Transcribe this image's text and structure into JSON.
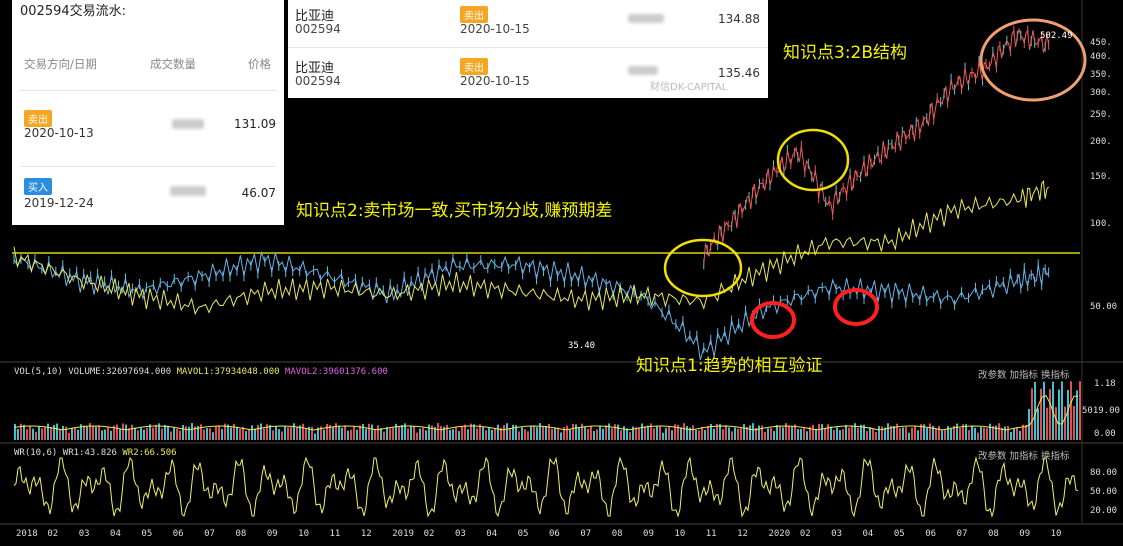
{
  "trade_log": {
    "title": "002594交易流水:",
    "headers": {
      "direction_date": "交易方向/日期",
      "quantity": "成交数量",
      "price": "价格"
    },
    "rows": [
      {
        "badge": "卖出",
        "badge_color": "#f5a623",
        "date": "2020-10-13",
        "price": "131.09"
      },
      {
        "badge": "买入",
        "badge_color": "#2a8dde",
        "date": "2019-12-24",
        "price": "46.07"
      }
    ]
  },
  "trade_log_top": {
    "rows": [
      {
        "name": "比亚迪",
        "code": "002594",
        "badge": "卖出",
        "date": "2020-10-15",
        "price": "134.88"
      },
      {
        "name": "比亚迪",
        "code": "002594",
        "badge": "卖出",
        "date": "2020-10-15",
        "price": "135.46"
      }
    ],
    "watermark": "财信DK-CAPITAL"
  },
  "annotations": {
    "note1": "知识点1:趋势的相互验证",
    "note2": "知识点2:卖市场一致,买市场分歧,赚预期差",
    "note3": "知识点3:2B结构"
  },
  "markers": {
    "low": "35.40",
    "high": "502.49"
  },
  "chart_data": [
    {
      "type": "line",
      "panel": "price",
      "yscale": "log",
      "ylim": [
        40,
        520
      ],
      "y_ticks": [
        "450.",
        "400.",
        "350.",
        "300.",
        "250.",
        "200.",
        "150.",
        "100.",
        "50.00"
      ],
      "x_ticks": [
        "2018",
        "02",
        "03",
        "04",
        "05",
        "06",
        "07",
        "08",
        "09",
        "10",
        "11",
        "12",
        "2019",
        "02",
        "03",
        "04",
        "05",
        "06",
        "07",
        "08",
        "09",
        "10",
        "11",
        "12",
        "2020",
        "02",
        "03",
        "04",
        "05",
        "06",
        "07",
        "08",
        "09",
        "10"
      ],
      "horizontal_line": {
        "color": "#d8d400"
      },
      "series": [
        {
          "color": "#6ab0e8",
          "style": "candles",
          "x": [
            0,
            2,
            4,
            6,
            8,
            10,
            12,
            14,
            16,
            18,
            20,
            22,
            24,
            26,
            28,
            30,
            32,
            33
          ],
          "values": [
            78,
            66,
            60,
            68,
            78,
            68,
            58,
            74,
            75,
            68,
            58,
            36,
            52,
            62,
            60,
            56,
            65,
            70
          ]
        },
        {
          "color": "#e8e85a",
          "x": [
            0,
            2,
            4,
            6,
            8,
            10,
            12,
            14,
            16,
            18,
            20,
            22,
            24,
            26,
            28,
            30,
            32,
            33
          ],
          "values": [
            80,
            66,
            58,
            52,
            60,
            62,
            58,
            64,
            60,
            56,
            58,
            55,
            72,
            90,
            90,
            118,
            128,
            142
          ]
        },
        {
          "color": "#e85a5a",
          "style": "candles",
          "x": [
            22,
            23,
            24,
            25,
            26,
            27,
            28,
            29,
            30,
            31,
            32,
            33
          ],
          "values": [
            80,
            110,
            150,
            190,
            120,
            160,
            200,
            240,
            330,
            380,
            500,
            460
          ]
        }
      ]
    },
    {
      "type": "bar",
      "panel": "volume",
      "label": "VOL(5,10)",
      "values_text": {
        "volume": "VOLUME:32697694.000",
        "mavol1": "MAVOL1:37934048.000",
        "mavol2": "MAVOL2:39601376.600"
      },
      "y_ticks": [
        "1.18",
        "5019.00",
        "0.00"
      ]
    },
    {
      "type": "line",
      "panel": "wr",
      "label": "WR(10,6)",
      "values_text": {
        "wr1": "WR1:43.826",
        "wr2": "WR2:66.506"
      },
      "y_ticks": [
        "80.00",
        "50.00",
        "20.00"
      ]
    }
  ],
  "panel_buttons": {
    "vol": "改参数 加指标 换指标",
    "wr": "改参数 加指标 换指标"
  },
  "colors": {
    "bg": "#000000",
    "note": "#f4f400",
    "circle_yellow": "#f0e000",
    "circle_red": "#ff2020",
    "circle_orange": "#f0a070"
  }
}
